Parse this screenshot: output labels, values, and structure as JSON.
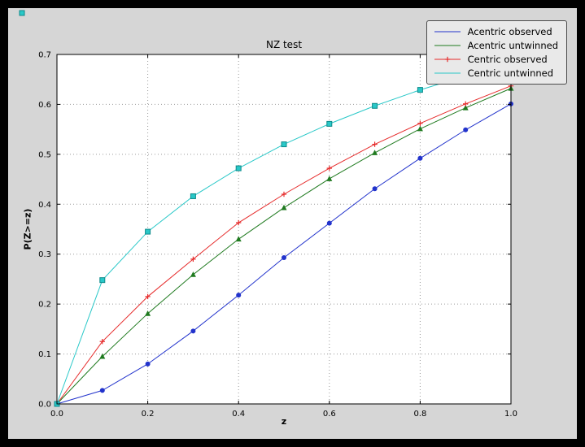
{
  "window": {
    "background": "#000000",
    "figure_background": "#d6d6d6",
    "axes_background": "#ffffff",
    "grid_color": "#9a9a9a",
    "axes_border_color": "#000000",
    "legend_background": "#e9e9e9"
  },
  "chart_data": {
    "type": "line",
    "title": "NZ test",
    "xlabel": "z",
    "ylabel": "P(Z>=z)",
    "xlim": [
      0.0,
      1.0
    ],
    "ylim": [
      0.0,
      0.7
    ],
    "grid": true,
    "grid_style": "dotted",
    "legend_position": "upper right",
    "xticks": {
      "values": [
        0.0,
        0.2,
        0.4,
        0.6,
        0.8,
        1.0
      ],
      "labels": [
        "0.0",
        "0.2",
        "0.4",
        "0.6",
        "0.8",
        "1.0"
      ]
    },
    "yticks": {
      "values": [
        0.0,
        0.1,
        0.2,
        0.3,
        0.4,
        0.5,
        0.6,
        0.7
      ],
      "labels": [
        "0.0",
        "0.1",
        "0.2",
        "0.3",
        "0.4",
        "0.5",
        "0.6",
        "0.7"
      ]
    },
    "x": [
      0.0,
      0.1,
      0.2,
      0.3,
      0.4,
      0.5,
      0.6,
      0.7,
      0.8,
      0.9,
      1.0
    ],
    "series": [
      {
        "name": "Acentric observed",
        "color": "#2233cc",
        "marker": "circle",
        "values": [
          0.0,
          0.027,
          0.08,
          0.146,
          0.218,
          0.293,
          0.362,
          0.431,
          0.492,
          0.549,
          0.601
        ]
      },
      {
        "name": "Acentric untwinned",
        "color": "#1f7a1f",
        "marker": "triangle",
        "values": [
          0.0,
          0.095,
          0.181,
          0.259,
          0.33,
          0.393,
          0.451,
          0.503,
          0.551,
          0.593,
          0.632
        ]
      },
      {
        "name": "Centric observed",
        "color": "#e62b2b",
        "marker": "plus",
        "values": [
          0.0,
          0.125,
          0.215,
          0.29,
          0.363,
          0.42,
          0.472,
          0.52,
          0.562,
          0.601,
          0.637
        ]
      },
      {
        "name": "Centric untwinned",
        "color": "#29c8c8",
        "marker": "square",
        "marker_edge": "#0e8a8a",
        "values": [
          0.0,
          0.248,
          0.345,
          0.416,
          0.472,
          0.52,
          0.561,
          0.597,
          0.629,
          0.657,
          0.683
        ]
      }
    ]
  }
}
